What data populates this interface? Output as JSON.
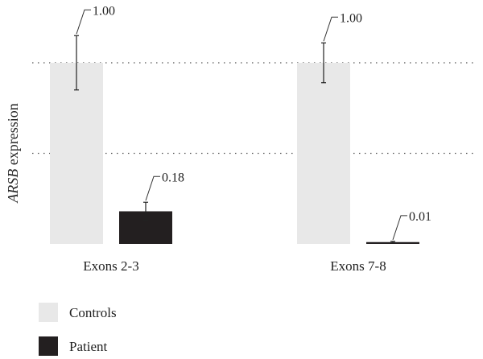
{
  "chart_data": {
    "type": "bar",
    "ylabel_italic": "ARSB",
    "ylabel_rest": " expression",
    "categories": [
      "Exons 2-3",
      "Exons 7-8"
    ],
    "series": [
      {
        "name": "Controls",
        "color": "#e8e8e8",
        "values": [
          1.0,
          1.0
        ],
        "errors": [
          0.15,
          0.11
        ],
        "value_labels": [
          "1.00",
          "1.00"
        ]
      },
      {
        "name": "Patient",
        "color": "#231f20",
        "values": [
          0.18,
          0.01
        ],
        "errors": [
          0.05,
          0.004
        ],
        "value_labels": [
          "0.18",
          "0.01"
        ]
      }
    ],
    "ylim": [
      0,
      1.2
    ],
    "gridlines": [
      0.5,
      1.0
    ],
    "grid": "dotted horizontal",
    "legend_position": "bottom-left"
  }
}
